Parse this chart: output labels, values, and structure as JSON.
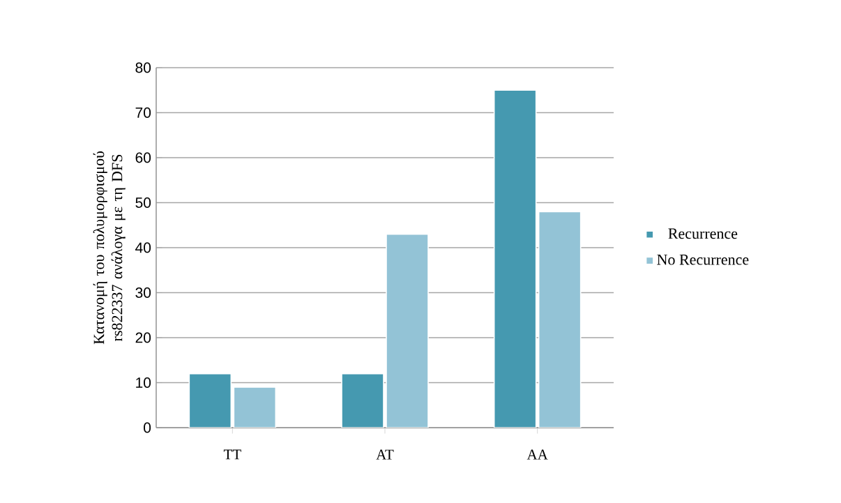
{
  "chart_data": {
    "type": "bar",
    "ylabel": "Κατανομή του πολυμορφισμού rs822337 ανάλογα με τη DFS",
    "categories": [
      "TT",
      "AT",
      "AA"
    ],
    "series": [
      {
        "name": "Recurrence",
        "color": "#4599b0",
        "values": [
          12,
          12,
          75
        ]
      },
      {
        "name": "No Recurrence",
        "color": "#93c3d6",
        "values": [
          9,
          43,
          48
        ]
      }
    ],
    "ylim": [
      0,
      80
    ],
    "yticks": [
      0,
      10,
      20,
      30,
      40,
      50,
      60,
      70,
      80
    ],
    "grid": "y",
    "legend": "right"
  }
}
